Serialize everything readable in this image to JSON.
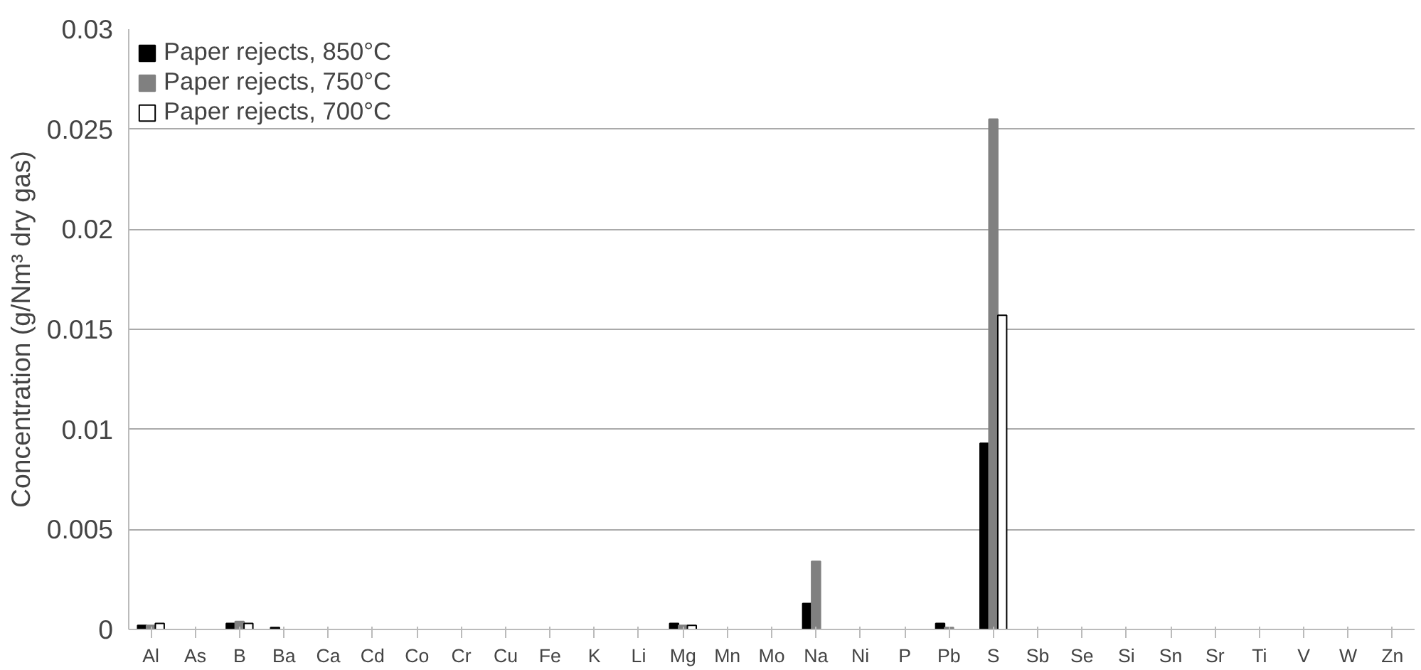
{
  "chart_data": {
    "type": "bar",
    "ylabel": "Concentration (g/Nm³ dry gas)",
    "categories": [
      "Al",
      "As",
      "B",
      "Ba",
      "Ca",
      "Cd",
      "Co",
      "Cr",
      "Cu",
      "Fe",
      "K",
      "Li",
      "Mg",
      "Mn",
      "Mo",
      "Na",
      "Ni",
      "P",
      "Pb",
      "S",
      "Sb",
      "Se",
      "Si",
      "Sn",
      "Sr",
      "Ti",
      "V",
      "W",
      "Zn"
    ],
    "series": [
      {
        "name": "Paper rejects, 850°C",
        "color": "#000000",
        "values": [
          0.0002,
          0,
          0.0003,
          0.0001,
          0,
          0,
          0,
          0,
          0,
          0,
          0,
          0,
          0.0003,
          0,
          0,
          0.0013,
          0,
          0,
          0.0003,
          0.0093,
          0,
          0,
          0,
          0,
          0,
          0,
          0,
          0,
          0
        ]
      },
      {
        "name": "Paper rejects, 750°C",
        "color": "#808080",
        "values": [
          0.0002,
          0,
          0.0004,
          0,
          0,
          0,
          0,
          0,
          0,
          0,
          0,
          0,
          0.0002,
          0,
          0,
          0.0034,
          0,
          0,
          0.0001,
          0.0255,
          0,
          0,
          0,
          0,
          0,
          0,
          0,
          0,
          0
        ]
      },
      {
        "name": "Paper rejects, 700°C",
        "color": "#ffffff",
        "values": [
          0.0003,
          0,
          0.0003,
          0,
          0,
          0,
          0,
          0,
          0,
          0,
          0,
          0,
          0.0002,
          0,
          0,
          0,
          0,
          0,
          0,
          0.0157,
          0,
          0,
          0,
          0,
          0,
          0,
          0,
          0,
          0
        ]
      }
    ],
    "ylim": [
      0,
      0.03
    ],
    "yticks": [
      0,
      0.005,
      0.01,
      0.015,
      0.02,
      0.025,
      0.03
    ],
    "grid": "y",
    "legend": "top left"
  }
}
